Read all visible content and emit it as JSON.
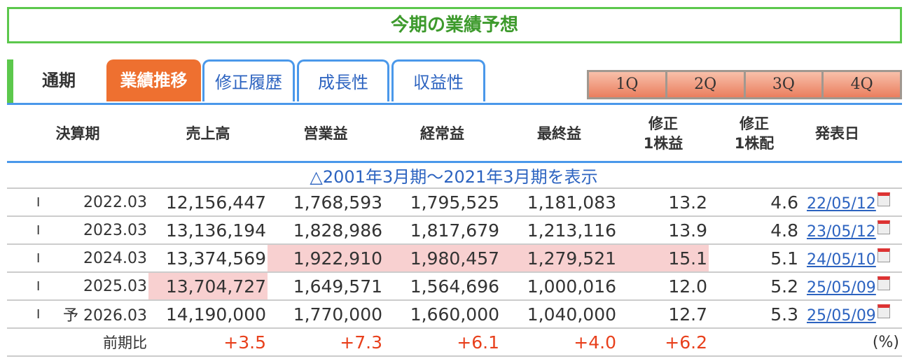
{
  "title": "今期の業績予想",
  "tabs": {
    "period": "通期",
    "active": "業績推移",
    "items": [
      "修正履歴",
      "成長性",
      "収益性"
    ]
  },
  "quarters": [
    "1Q",
    "2Q",
    "3Q",
    "4Q"
  ],
  "headers": [
    "決算期",
    "売上高",
    "営業益",
    "経常益",
    "最終益",
    "修正\n1株益",
    "修正\n1株配",
    "発表日"
  ],
  "toggle": "△2001年3月期～2021年3月期を表示",
  "rows": [
    {
      "mark": "I",
      "pre": "",
      "period": "2022.03",
      "sales": "12,156,447",
      "op": "1,768,593",
      "ord": "1,795,525",
      "net": "1,181,083",
      "eps": "13.2",
      "div": "4.6",
      "date": "22/05/12"
    },
    {
      "mark": "I",
      "pre": "",
      "period": "2023.03",
      "sales": "13,136,194",
      "op": "1,828,986",
      "ord": "1,817,679",
      "net": "1,213,116",
      "eps": "13.9",
      "div": "4.8",
      "date": "23/05/12"
    },
    {
      "mark": "I",
      "pre": "",
      "period": "2024.03",
      "sales": "13,374,569",
      "op": "1,922,910",
      "ord": "1,980,457",
      "net": "1,279,521",
      "eps": "15.1",
      "div": "5.1",
      "date": "24/05/10"
    },
    {
      "mark": "I",
      "pre": "",
      "period": "2025.03",
      "sales": "13,704,727",
      "op": "1,649,571",
      "ord": "1,564,696",
      "net": "1,000,016",
      "eps": "12.0",
      "div": "5.2",
      "date": "25/05/09"
    },
    {
      "mark": "I",
      "pre": "予",
      "period": "2026.03",
      "sales": "14,190,000",
      "op": "1,770,000",
      "ord": "1,660,000",
      "net": "1,040,000",
      "eps": "12.7",
      "div": "5.3",
      "date": "25/05/09"
    }
  ],
  "ratio": {
    "label": "前期比",
    "sales": "+3.5",
    "op": "+7.3",
    "ord": "+6.1",
    "net": "+4.0",
    "eps": "+6.2",
    "unit": "(%)"
  },
  "highlights": {
    "2": [
      "op",
      "ord",
      "net",
      "eps"
    ],
    "3": [
      "sales"
    ]
  },
  "colors": {
    "accent_green": "#5cc84c",
    "tab_orange": "#ee7030",
    "link_blue": "#2c63c0",
    "highlight": "#f8d0d0",
    "positive_red": "#e8401c"
  }
}
